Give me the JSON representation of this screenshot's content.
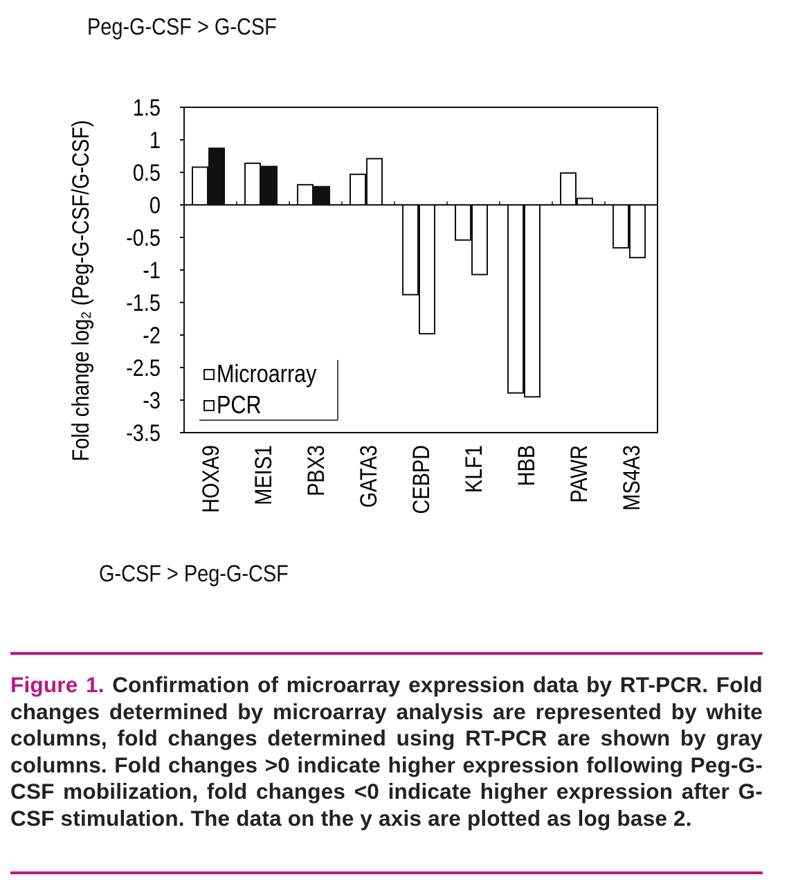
{
  "header_note": "Peg-G-CSF > G-CSF",
  "footer_note": "G-CSF > Peg-G-CSF",
  "chart_data": {
    "type": "bar",
    "ylabel": "Fold change log₂ (Peg-G-CSF/G-CSF)",
    "ylim": [
      -3.5,
      1.5
    ],
    "yticks": [
      1.5,
      1,
      0.5,
      0,
      -0.5,
      -1,
      -1.5,
      -2,
      -2.5,
      -3,
      -3.5
    ],
    "ytick_labels": [
      "1.5",
      "1",
      "0.5",
      "0",
      "-0.5",
      "-1",
      "-1.5",
      "-2",
      "-2.5",
      "-3",
      "-3.5"
    ],
    "categories": [
      "HOXA9",
      "MEIS1",
      "PBX3",
      "GATA3",
      "CEBPD",
      "KLF1",
      "HBB",
      "PAWR",
      "MS4A3"
    ],
    "series": [
      {
        "name": "Microarray",
        "values": [
          0.58,
          0.64,
          0.31,
          0.47,
          -1.38,
          -0.54,
          -2.89,
          0.49,
          -0.66
        ],
        "fills": [
          "#ffffff",
          "#ffffff",
          "#ffffff",
          "#ffffff",
          "#ffffff",
          "#ffffff",
          "#ffffff",
          "#ffffff",
          "#ffffff"
        ]
      },
      {
        "name": "PCR",
        "values": [
          0.87,
          0.59,
          0.28,
          0.71,
          -1.98,
          -1.07,
          -2.95,
          0.1,
          -0.81
        ],
        "fills": [
          "#111111",
          "#111111",
          "#111111",
          "#ffffff",
          "#ffffff",
          "#ffffff",
          "#ffffff",
          "#ffffff",
          "#ffffff"
        ]
      }
    ],
    "legend": {
      "placement": "bottom-left",
      "entries": [
        "Microarray",
        "PCR"
      ]
    },
    "grid": false
  },
  "caption": {
    "label": "Figure 1.",
    "text": "Confirmation of microarray expression data by RT-PCR. Fold changes determined by microarray analysis are represented by white columns, fold changes determined using RT-PCR are shown by gray columns. Fold changes >0 indicate higher expression following Peg-G-CSF mobilization, fold changes <0 indicate higher expression after G-CSF stimulation. The data on the y axis are plotted as log base 2."
  },
  "colors": {
    "accent": "#c0157f"
  }
}
